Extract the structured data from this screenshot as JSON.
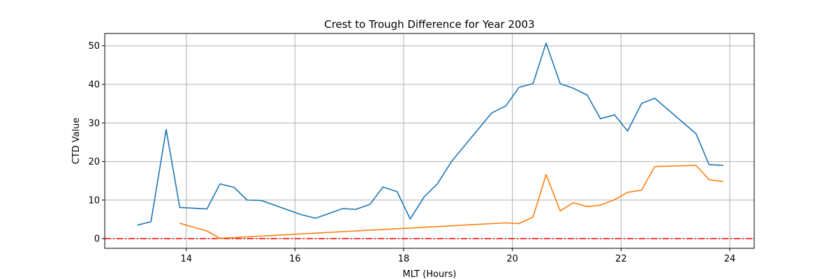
{
  "chart_data": {
    "type": "line",
    "title": "Crest to Trough Difference for Year 2003",
    "xlabel": "MLT (Hours)",
    "ylabel": "CTD Value",
    "xlim": [
      12.5,
      24.45
    ],
    "ylim": [
      -2.5,
      53.2
    ],
    "xticks": [
      14,
      16,
      18,
      20,
      22,
      24
    ],
    "yticks": [
      0,
      10,
      20,
      30,
      40,
      50
    ],
    "grid": true,
    "series": [
      {
        "color": "#1f77b4",
        "points": [
          [
            13.1,
            3.5
          ],
          [
            13.35,
            4.4
          ],
          [
            13.63,
            28.3
          ],
          [
            13.88,
            8.1
          ],
          [
            14.38,
            7.7
          ],
          [
            14.62,
            14.2
          ],
          [
            14.88,
            13.3
          ],
          [
            15.12,
            10.0
          ],
          [
            15.38,
            9.9
          ],
          [
            16.12,
            6.2
          ],
          [
            16.38,
            5.3
          ],
          [
            16.88,
            7.8
          ],
          [
            17.12,
            7.6
          ],
          [
            17.38,
            8.9
          ],
          [
            17.62,
            13.4
          ],
          [
            17.88,
            12.2
          ],
          [
            18.12,
            5.1
          ],
          [
            18.38,
            10.9
          ],
          [
            18.62,
            14.2
          ],
          [
            18.88,
            20.0
          ],
          [
            19.62,
            32.6
          ],
          [
            19.88,
            34.4
          ],
          [
            20.12,
            39.2
          ],
          [
            20.38,
            40.2
          ],
          [
            20.62,
            50.7
          ],
          [
            20.88,
            40.2
          ],
          [
            21.12,
            39.0
          ],
          [
            21.38,
            37.2
          ],
          [
            21.62,
            31.1
          ],
          [
            21.88,
            32.1
          ],
          [
            22.12,
            27.9
          ],
          [
            22.38,
            35.1
          ],
          [
            22.62,
            36.4
          ],
          [
            23.38,
            27.2
          ],
          [
            23.62,
            19.2
          ],
          [
            23.88,
            19.0
          ]
        ]
      },
      {
        "color": "#ff7f0e",
        "points": [
          [
            13.88,
            4.0
          ],
          [
            14.38,
            2.0
          ],
          [
            14.62,
            0.1
          ],
          [
            19.88,
            4.1
          ],
          [
            20.12,
            3.9
          ],
          [
            20.38,
            5.6
          ],
          [
            20.62,
            16.6
          ],
          [
            20.88,
            7.2
          ],
          [
            21.12,
            9.3
          ],
          [
            21.38,
            8.3
          ],
          [
            21.62,
            8.7
          ],
          [
            21.88,
            10.1
          ],
          [
            22.12,
            12.0
          ],
          [
            22.38,
            12.6
          ],
          [
            22.62,
            18.7
          ],
          [
            23.38,
            19.0
          ],
          [
            23.62,
            15.3
          ],
          [
            23.88,
            14.8
          ]
        ]
      }
    ],
    "reference_lines": [
      {
        "y": 0,
        "color": "#ff0000",
        "style": "dash-dot"
      }
    ]
  }
}
